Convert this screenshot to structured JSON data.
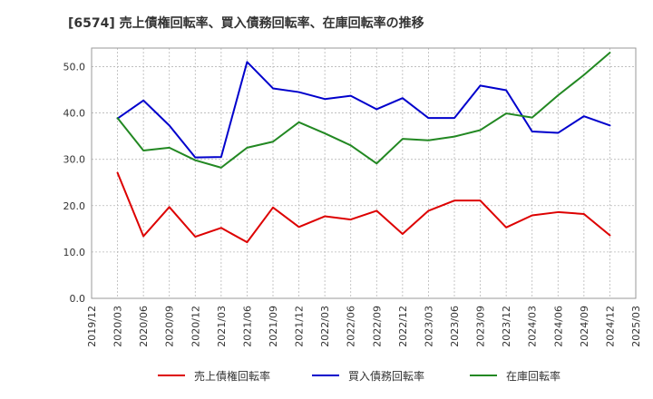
{
  "chart_data": {
    "type": "line",
    "title": "[6574]  売上債権回転率、買入債務回転率、在庫回転率の推移",
    "xlabel": "",
    "ylabel": "",
    "ylim": [
      0,
      54
    ],
    "y_ticks": [
      0,
      10,
      20,
      30,
      40,
      50
    ],
    "y_tick_labels": [
      "0.0",
      "10.0",
      "20.0",
      "30.0",
      "40.0",
      "50.0"
    ],
    "grid": true,
    "legend_position": "bottom",
    "x_tick_labels": [
      "2019/12",
      "2020/03",
      "2020/06",
      "2020/09",
      "2020/12",
      "2021/03",
      "2021/06",
      "2021/09",
      "2021/12",
      "2022/03",
      "2022/06",
      "2022/09",
      "2022/12",
      "2023/03",
      "2023/06",
      "2023/09",
      "2023/12",
      "2024/03",
      "2024/06",
      "2024/09",
      "2024/12",
      "2025/03"
    ],
    "categories": [
      "2020/03",
      "2020/06",
      "2020/09",
      "2020/12",
      "2021/03",
      "2021/06",
      "2021/09",
      "2021/12",
      "2022/03",
      "2022/06",
      "2022/09",
      "2022/12",
      "2023/03",
      "2023/06",
      "2023/09",
      "2023/12",
      "2024/03",
      "2024/06",
      "2024/09",
      "2024/12"
    ],
    "series": [
      {
        "name": "売上債権回転率",
        "color": "#dd0000",
        "values": [
          27.1,
          13.4,
          19.7,
          13.3,
          15.2,
          12.1,
          19.6,
          15.4,
          17.7,
          17.0,
          18.9,
          13.9,
          18.9,
          21.1,
          21.1,
          15.3,
          17.9,
          18.6,
          18.2,
          13.6
        ]
      },
      {
        "name": "買入債務回転率",
        "color": "#0000cc",
        "values": [
          38.8,
          42.7,
          37.3,
          30.4,
          30.5,
          51.0,
          45.3,
          44.5,
          43.0,
          43.7,
          40.8,
          43.2,
          38.9,
          38.9,
          45.9,
          44.9,
          36.0,
          35.7,
          39.3,
          37.3
        ]
      },
      {
        "name": "在庫回転率",
        "color": "#228822",
        "values": [
          38.9,
          31.9,
          32.5,
          29.8,
          28.2,
          32.5,
          33.8,
          38.0,
          35.6,
          33.0,
          29.1,
          34.4,
          34.1,
          34.9,
          36.3,
          39.9,
          39.0,
          43.8,
          48.2,
          53.0
        ]
      }
    ]
  }
}
